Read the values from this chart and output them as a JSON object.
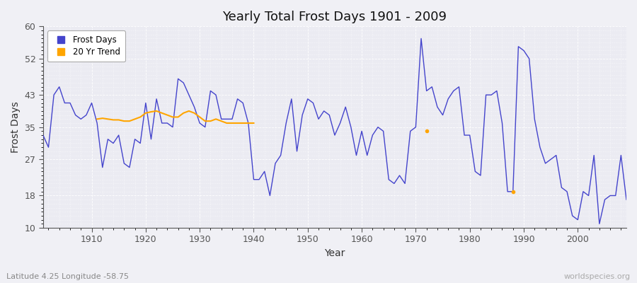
{
  "title": "Yearly Total Frost Days 1901 - 2009",
  "xlabel": "Year",
  "ylabel": "Frost Days",
  "subtitle": "Latitude 4.25 Longitude -58.75",
  "watermark": "worldspecies.org",
  "xlim": [
    1901,
    2009
  ],
  "ylim": [
    10,
    60
  ],
  "yticks": [
    10,
    18,
    27,
    35,
    43,
    52,
    60
  ],
  "xticks": [
    1910,
    1920,
    1930,
    1940,
    1950,
    1960,
    1970,
    1980,
    1990,
    2000
  ],
  "bg_color": "#f0f0f5",
  "plot_bg_color": "#ebebf2",
  "line_color": "#4444cc",
  "trend_color": "#ffa500",
  "frost_days": {
    "1901": 33,
    "1902": 30,
    "1903": 43,
    "1904": 45,
    "1905": 41,
    "1906": 41,
    "1907": 38,
    "1908": 37,
    "1909": 38,
    "1910": 41,
    "1911": 36,
    "1912": 25,
    "1913": 32,
    "1914": 31,
    "1915": 33,
    "1916": 26,
    "1917": 25,
    "1918": 32,
    "1919": 31,
    "1920": 41,
    "1921": 32,
    "1922": 42,
    "1923": 36,
    "1924": 36,
    "1925": 35,
    "1926": 47,
    "1927": 46,
    "1928": 43,
    "1929": 40,
    "1930": 36,
    "1931": 35,
    "1932": 44,
    "1933": 43,
    "1934": 37,
    "1935": 37,
    "1936": 37,
    "1937": 42,
    "1938": 41,
    "1939": 36,
    "1940": 22,
    "1941": 22,
    "1942": 24,
    "1943": 18,
    "1944": 26,
    "1945": 28,
    "1946": 36,
    "1947": 42,
    "1948": 29,
    "1949": 38,
    "1950": 42,
    "1951": 41,
    "1952": 37,
    "1953": 39,
    "1954": 38,
    "1955": 33,
    "1956": 36,
    "1957": 40,
    "1958": 35,
    "1959": 28,
    "1960": 34,
    "1961": 28,
    "1962": 33,
    "1963": 35,
    "1964": 34,
    "1965": 22,
    "1966": 21,
    "1967": 23,
    "1968": 21,
    "1969": 34,
    "1970": 35,
    "1971": 57,
    "1972": 44,
    "1973": 45,
    "1974": 40,
    "1975": 38,
    "1976": 42,
    "1977": 44,
    "1978": 45,
    "1979": 33,
    "1980": 33,
    "1981": 24,
    "1982": 23,
    "1983": 43,
    "1984": 43,
    "1985": 44,
    "1986": 36,
    "1987": 19,
    "1988": 19,
    "1989": 55,
    "1990": 54,
    "1991": 52,
    "1992": 37,
    "1993": 30,
    "1994": 26,
    "1995": 27,
    "1996": 28,
    "1997": 20,
    "1998": 19,
    "1999": 13,
    "2000": 12,
    "2001": 19,
    "2002": 18,
    "2003": 28,
    "2004": 11,
    "2005": 17,
    "2006": 18,
    "2007": 18,
    "2008": 28,
    "2009": 17
  },
  "trend_20yr_main": {
    "1911": 37,
    "1912": 37.2,
    "1913": 37.0,
    "1914": 36.8,
    "1915": 36.8,
    "1916": 36.5,
    "1917": 36.5,
    "1918": 37.0,
    "1919": 37.5,
    "1920": 38.5,
    "1921": 38.8,
    "1922": 39.0,
    "1923": 38.5,
    "1924": 38.0,
    "1925": 37.5,
    "1926": 37.5,
    "1927": 38.5,
    "1928": 39.0,
    "1929": 38.5,
    "1930": 37.5,
    "1931": 36.5,
    "1932": 36.5,
    "1933": 37.0,
    "1934": 36.5,
    "1935": 36.0,
    "1936": 36.0,
    "1937": 36.0,
    "1938": 36.0,
    "1939": 36.0,
    "1940": 36.0
  },
  "trend_20yr_isolated": {
    "1972": 34,
    "1988": 19
  }
}
